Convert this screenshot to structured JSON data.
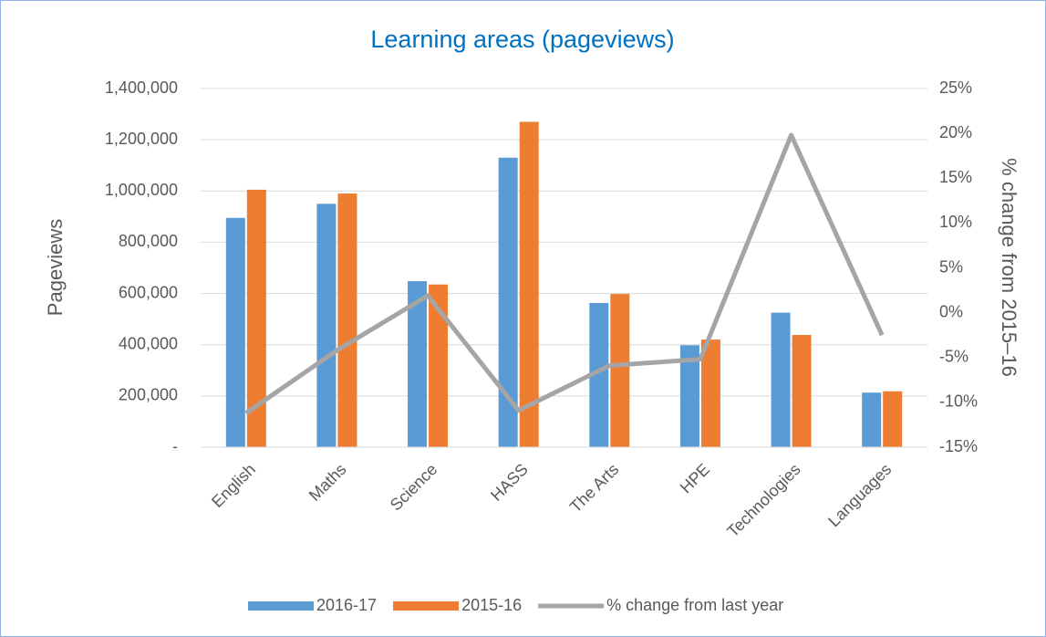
{
  "chart_data": {
    "type": "bar_line",
    "title": "Learning areas (pageviews)",
    "y_label": "Pageviews",
    "y2_label": "% change from 2015–16",
    "categories": [
      "English",
      "Maths",
      "Science",
      "HASS",
      "The Arts",
      "HPE",
      "Technologies",
      "Languages"
    ],
    "series": [
      {
        "name": "2016-17",
        "type": "bar",
        "color": "#5b9bd5",
        "values": [
          895000,
          950000,
          648000,
          1130000,
          563000,
          398000,
          525000,
          213000
        ]
      },
      {
        "name": "2015-16",
        "type": "bar",
        "color": "#ed7d31",
        "values": [
          1005000,
          990000,
          635000,
          1270000,
          598000,
          420000,
          438000,
          218000
        ]
      },
      {
        "name": "% change from last year",
        "type": "line",
        "axis": "y2",
        "color": "#a5a5a5",
        "values": [
          -11.2,
          -4.2,
          1.9,
          -10.9,
          -5.9,
          -5.2,
          19.8,
          -2.5
        ]
      }
    ],
    "ylim": [
      0,
      1400000
    ],
    "yticks": [
      {
        "value": 0,
        "label": "-"
      },
      {
        "value": 200000,
        "label": "200,000"
      },
      {
        "value": 400000,
        "label": "400,000"
      },
      {
        "value": 600000,
        "label": "600,000"
      },
      {
        "value": 800000,
        "label": "800,000"
      },
      {
        "value": 1000000,
        "label": "1,000,000"
      },
      {
        "value": 1200000,
        "label": "1,200,000"
      },
      {
        "value": 1400000,
        "label": "1,400,000"
      }
    ],
    "y2lim": [
      -15,
      25
    ],
    "y2ticks": [
      {
        "value": -15,
        "label": "-15%"
      },
      {
        "value": -10,
        "label": "-10%"
      },
      {
        "value": -5,
        "label": "-5%"
      },
      {
        "value": 0,
        "label": "0%"
      },
      {
        "value": 5,
        "label": "5%"
      },
      {
        "value": 10,
        "label": "10%"
      },
      {
        "value": 15,
        "label": "15%"
      },
      {
        "value": 20,
        "label": "20%"
      },
      {
        "value": 25,
        "label": "25%"
      }
    ],
    "grid": true,
    "legend": "bottom"
  }
}
